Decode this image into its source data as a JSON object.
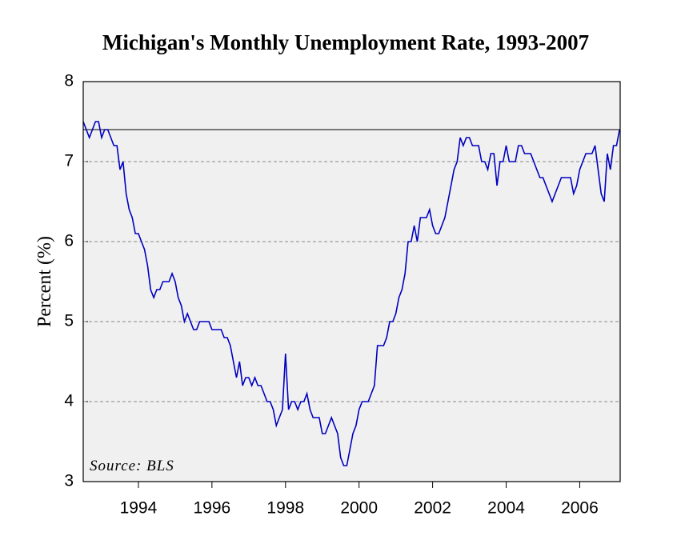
{
  "chart_data": {
    "type": "line",
    "title": "Michigan's Monthly Unemployment Rate, 1993-2007",
    "y_label": "Percent (%)",
    "annotation": "Source: BLS",
    "xlim": [
      1993,
      2007.6
    ],
    "xticks": [
      {
        "value": 1994.5,
        "label": "1994"
      },
      {
        "value": 1996.5,
        "label": "1996"
      },
      {
        "value": 1998.5,
        "label": "1998"
      },
      {
        "value": 2000.5,
        "label": "2000"
      },
      {
        "value": 2002.5,
        "label": "2002"
      },
      {
        "value": 2004.5,
        "label": "2004"
      },
      {
        "value": 2006.5,
        "label": "2006"
      }
    ],
    "ylim": [
      3,
      8
    ],
    "yticks": [
      3,
      4,
      5,
      6,
      7,
      8
    ],
    "grid": true,
    "reference_line": 7.4,
    "x": [
      1993,
      1993.083,
      1993.167,
      1993.25,
      1993.333,
      1993.417,
      1993.5,
      1993.583,
      1993.667,
      1993.75,
      1993.833,
      1993.917,
      1994,
      1994.083,
      1994.167,
      1994.25,
      1994.333,
      1994.417,
      1994.5,
      1994.583,
      1994.667,
      1994.75,
      1994.833,
      1994.917,
      1995,
      1995.083,
      1995.167,
      1995.25,
      1995.333,
      1995.417,
      1995.5,
      1995.583,
      1995.667,
      1995.75,
      1995.833,
      1995.917,
      1996,
      1996.083,
      1996.167,
      1996.25,
      1996.333,
      1996.417,
      1996.5,
      1996.583,
      1996.667,
      1996.75,
      1996.833,
      1996.917,
      1997,
      1997.083,
      1997.167,
      1997.25,
      1997.333,
      1997.417,
      1997.5,
      1997.583,
      1997.667,
      1997.75,
      1997.833,
      1997.917,
      1998,
      1998.083,
      1998.167,
      1998.25,
      1998.333,
      1998.417,
      1998.5,
      1998.583,
      1998.667,
      1998.75,
      1998.833,
      1998.917,
      1999,
      1999.083,
      1999.167,
      1999.25,
      1999.333,
      1999.417,
      1999.5,
      1999.583,
      1999.667,
      1999.75,
      1999.833,
      1999.917,
      2000,
      2000.083,
      2000.167,
      2000.25,
      2000.333,
      2000.417,
      2000.5,
      2000.583,
      2000.667,
      2000.75,
      2000.833,
      2000.917,
      2001,
      2001.083,
      2001.167,
      2001.25,
      2001.333,
      2001.417,
      2001.5,
      2001.583,
      2001.667,
      2001.75,
      2001.833,
      2001.917,
      2002,
      2002.083,
      2002.167,
      2002.25,
      2002.333,
      2002.417,
      2002.5,
      2002.583,
      2002.667,
      2002.75,
      2002.833,
      2002.917,
      2003,
      2003.083,
      2003.167,
      2003.25,
      2003.333,
      2003.417,
      2003.5,
      2003.583,
      2003.667,
      2003.75,
      2003.833,
      2003.917,
      2004,
      2004.083,
      2004.167,
      2004.25,
      2004.333,
      2004.417,
      2004.5,
      2004.583,
      2004.667,
      2004.75,
      2004.833,
      2004.917,
      2005,
      2005.083,
      2005.167,
      2005.25,
      2005.333,
      2005.417,
      2005.5,
      2005.583,
      2005.667,
      2005.75,
      2005.833,
      2005.917,
      2006,
      2006.083,
      2006.167,
      2006.25,
      2006.333,
      2006.417,
      2006.5,
      2006.583,
      2006.667,
      2006.75,
      2006.833,
      2006.917,
      2007,
      2007.083,
      2007.167,
      2007.25,
      2007.333,
      2007.417,
      2007.5,
      2007.583
    ],
    "series": [
      {
        "color": "#0000c0",
        "values": [
          7.5,
          7.4,
          7.3,
          7.4,
          7.5,
          7.5,
          7.3,
          7.4,
          7.4,
          7.3,
          7.2,
          7.2,
          6.9,
          7.0,
          6.6,
          6.4,
          6.3,
          6.1,
          6.1,
          6.0,
          5.9,
          5.7,
          5.4,
          5.3,
          5.4,
          5.4,
          5.5,
          5.5,
          5.5,
          5.6,
          5.5,
          5.3,
          5.2,
          5.0,
          5.1,
          5.0,
          4.9,
          4.9,
          5.0,
          5.0,
          5.0,
          5.0,
          4.9,
          4.9,
          4.9,
          4.9,
          4.8,
          4.8,
          4.7,
          4.5,
          4.3,
          4.5,
          4.2,
          4.3,
          4.3,
          4.2,
          4.3,
          4.2,
          4.2,
          4.1,
          4.0,
          4.0,
          3.9,
          3.7,
          3.8,
          3.9,
          4.6,
          3.9,
          4.0,
          4.0,
          3.9,
          4.0,
          4.0,
          4.1,
          3.9,
          3.8,
          3.8,
          3.8,
          3.6,
          3.6,
          3.7,
          3.8,
          3.7,
          3.6,
          3.3,
          3.2,
          3.2,
          3.4,
          3.6,
          3.7,
          3.9,
          4.0,
          4.0,
          4.0,
          4.1,
          4.2,
          4.7,
          4.7,
          4.7,
          4.8,
          5.0,
          5.0,
          5.1,
          5.3,
          5.4,
          5.6,
          6.0,
          6.0,
          6.2,
          6.0,
          6.3,
          6.3,
          6.3,
          6.4,
          6.2,
          6.1,
          6.1,
          6.2,
          6.3,
          6.5,
          6.7,
          6.9,
          7.0,
          7.3,
          7.2,
          7.3,
          7.3,
          7.2,
          7.2,
          7.2,
          7.0,
          7.0,
          6.9,
          7.1,
          7.1,
          6.7,
          7.0,
          7.0,
          7.2,
          7.0,
          7.0,
          7.0,
          7.2,
          7.2,
          7.1,
          7.1,
          7.1,
          7.0,
          6.9,
          6.8,
          6.8,
          6.7,
          6.6,
          6.5,
          6.6,
          6.7,
          6.8,
          6.8,
          6.8,
          6.8,
          6.6,
          6.7,
          6.9,
          7.0,
          7.1,
          7.1,
          7.1,
          7.2,
          6.9,
          6.6,
          6.5,
          7.1,
          6.9,
          7.2,
          7.2,
          7.4
        ]
      }
    ]
  }
}
